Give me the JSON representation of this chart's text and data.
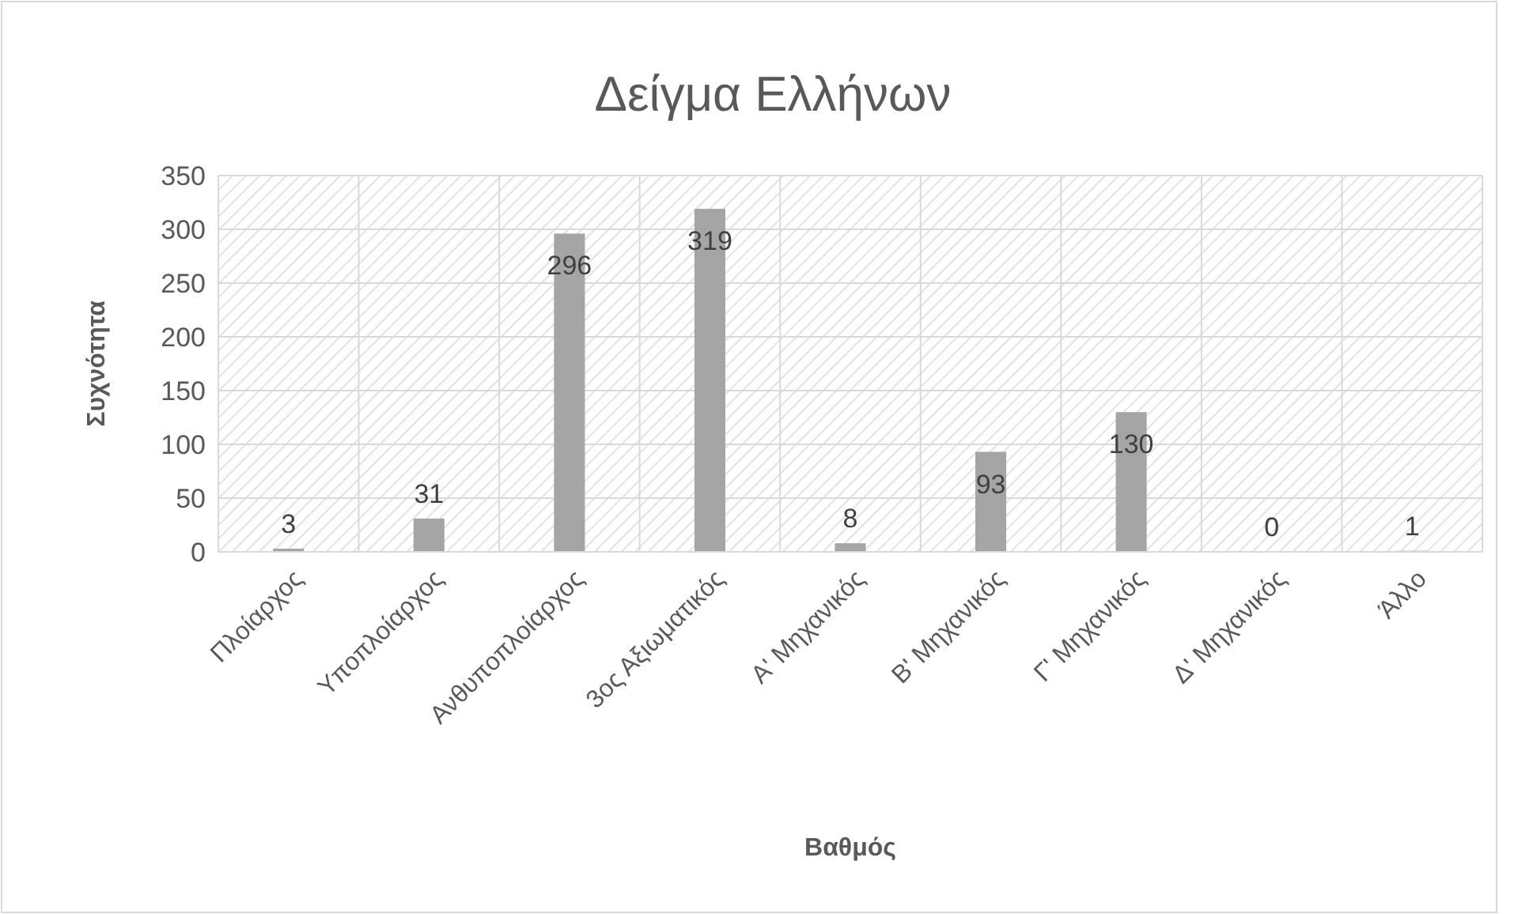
{
  "chart_data": {
    "type": "bar",
    "title": "Δείγμα Ελλήνων",
    "xlabel": "Βαθμός",
    "ylabel": "Συχνότητα",
    "categories": [
      "Πλοίαρχος",
      "Υποπλοίαρχος",
      "Ανθυποπλοίαρχος",
      "3ος Αξιωματικός",
      "Α' Μηχανικός",
      "Β' Μηχανικός",
      "Γ' Μηχανικός",
      "Δ' Μηχανικός",
      "Άλλο"
    ],
    "values": [
      3,
      31,
      296,
      319,
      8,
      93,
      130,
      0,
      1
    ],
    "color": "#a5a5a5",
    "ylim": [
      0,
      350
    ],
    "yticks": [
      0,
      50,
      100,
      150,
      200,
      250,
      300,
      350
    ],
    "grid": true,
    "data_labels": true
  }
}
